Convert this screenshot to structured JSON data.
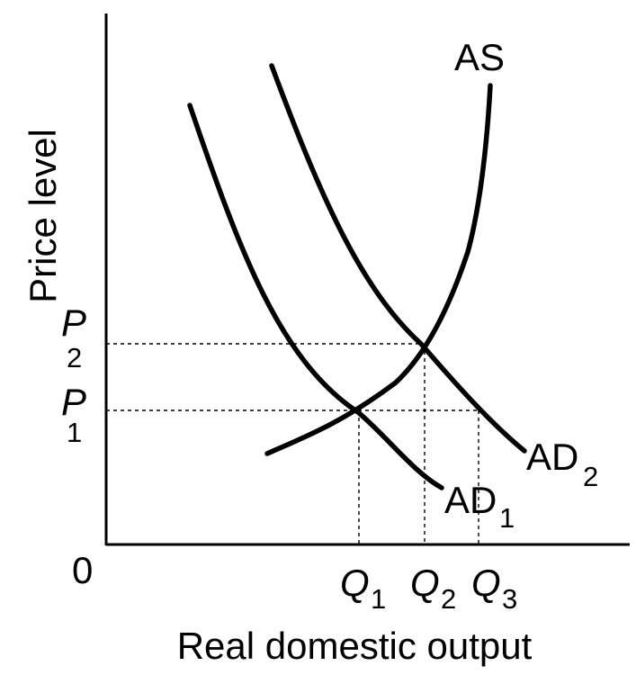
{
  "axes": {
    "y_label": "Price level",
    "x_label": "Real domestic output",
    "origin_label": "0"
  },
  "prices": [
    {
      "letter": "P",
      "sub": "2"
    },
    {
      "letter": "P",
      "sub": "1"
    }
  ],
  "quantities": [
    {
      "letter": "Q",
      "sub": "1"
    },
    {
      "letter": "Q",
      "sub": "2"
    },
    {
      "letter": "Q",
      "sub": "3"
    }
  ],
  "curves": {
    "as": {
      "main": "AS"
    },
    "ad1": {
      "main": "AD",
      "sub": "1"
    },
    "ad2": {
      "main": "AD",
      "sub": "2"
    }
  }
}
